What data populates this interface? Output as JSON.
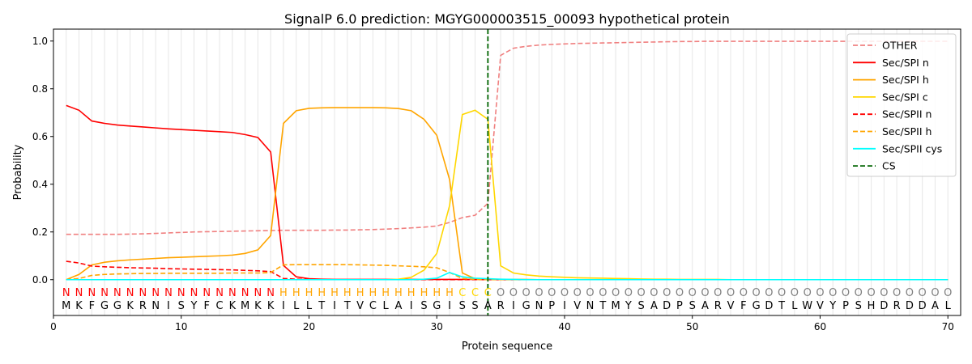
{
  "chart_data": {
    "type": "line",
    "title": "SignalP 6.0 prediction: MGYG000003515_00093 hypothetical protein",
    "xlabel": "Protein sequence",
    "ylabel": "Probability",
    "xlim": [
      0,
      71
    ],
    "ylim": [
      -0.15,
      1.05
    ],
    "x_ticks": [
      0,
      10,
      20,
      30,
      40,
      50,
      60,
      70
    ],
    "y_ticks": [
      0.0,
      0.2,
      0.4,
      0.6,
      0.8,
      1.0
    ],
    "x_tick_labels": [
      "0",
      "10",
      "20",
      "30",
      "40",
      "50",
      "60",
      "70"
    ],
    "y_tick_labels": [
      "0.0",
      "0.2",
      "0.4",
      "0.6",
      "0.8",
      "1.0"
    ],
    "grid": "vertical lines at each residue",
    "legend_position": "top-right",
    "sequence": [
      "M",
      "K",
      "F",
      "G",
      "G",
      "K",
      "R",
      "N",
      "I",
      "S",
      "Y",
      "F",
      "C",
      "K",
      "M",
      "K",
      "K",
      "I",
      "L",
      "L",
      "T",
      "I",
      "T",
      "V",
      "C",
      "L",
      "A",
      "I",
      "S",
      "G",
      "I",
      "S",
      "S",
      "A",
      "R",
      "I",
      "G",
      "N",
      "P",
      "I",
      "V",
      "N",
      "T",
      "M",
      "Y",
      "S",
      "A",
      "D",
      "P",
      "S",
      "A",
      "R",
      "V",
      "F",
      "G",
      "D",
      "T",
      "L",
      "W",
      "V",
      "Y",
      "P",
      "S",
      "H",
      "D",
      "R",
      "D",
      "D",
      "A",
      "L"
    ],
    "labels": [
      "N",
      "N",
      "N",
      "N",
      "N",
      "N",
      "N",
      "N",
      "N",
      "N",
      "N",
      "N",
      "N",
      "N",
      "N",
      "N",
      "N",
      "H",
      "H",
      "H",
      "H",
      "H",
      "H",
      "H",
      "H",
      "H",
      "H",
      "H",
      "H",
      "H",
      "H",
      "C",
      "C",
      "C",
      "O",
      "O",
      "O",
      "O",
      "O",
      "O",
      "O",
      "O",
      "O",
      "O",
      "O",
      "O",
      "O",
      "O",
      "O",
      "O",
      "O",
      "O",
      "O",
      "O",
      "O",
      "O",
      "O",
      "O",
      "O",
      "O",
      "O",
      "O",
      "O",
      "O",
      "O",
      "O",
      "O",
      "O",
      "O",
      "O"
    ],
    "label_colors": {
      "N": "#ff0000",
      "H": "#ffa500",
      "C": "#ffd700",
      "O": "#808080"
    },
    "cleavage_site": 34,
    "series": [
      {
        "name": "OTHER",
        "color": "#f08080",
        "dash": "dashed",
        "values": [
          0.19,
          0.19,
          0.19,
          0.19,
          0.19,
          0.191,
          0.192,
          0.194,
          0.196,
          0.198,
          0.2,
          0.201,
          0.202,
          0.203,
          0.204,
          0.205,
          0.206,
          0.207,
          0.207,
          0.207,
          0.207,
          0.208,
          0.208,
          0.209,
          0.21,
          0.212,
          0.214,
          0.217,
          0.22,
          0.225,
          0.24,
          0.26,
          0.27,
          0.32,
          0.94,
          0.97,
          0.978,
          0.983,
          0.986,
          0.988,
          0.99,
          0.991,
          0.992,
          0.993,
          0.994,
          0.995,
          0.996,
          0.997,
          0.998,
          0.998,
          0.999,
          0.999,
          0.999,
          0.999,
          0.999,
          0.999,
          0.999,
          0.999,
          0.999,
          0.999,
          0.999,
          0.999,
          0.999,
          0.999,
          0.999,
          0.999,
          0.999,
          0.999,
          0.999,
          0.999
        ]
      },
      {
        "name": "Sec/SPI n",
        "color": "#ff0000",
        "dash": "solid",
        "values": [
          0.73,
          0.71,
          0.665,
          0.655,
          0.648,
          0.644,
          0.64,
          0.636,
          0.632,
          0.629,
          0.626,
          0.623,
          0.62,
          0.617,
          0.608,
          0.596,
          0.535,
          0.06,
          0.012,
          0.004,
          0.002,
          0.001,
          0.001,
          0.001,
          0.001,
          0.001,
          0.001,
          0.001,
          0.001,
          0.001,
          0.001,
          0.001,
          0.001,
          0.001,
          0.0,
          0.0,
          0.0,
          0.0,
          0.0,
          0.0,
          0.0,
          0.0,
          0.0,
          0.0,
          0.0,
          0.0,
          0.0,
          0.0,
          0.0,
          0.0,
          0.0,
          0.0,
          0.0,
          0.0,
          0.0,
          0.0,
          0.0,
          0.0,
          0.0,
          0.0,
          0.0,
          0.0,
          0.0,
          0.0,
          0.0,
          0.0,
          0.0,
          0.0,
          0.0,
          0.0
        ]
      },
      {
        "name": "Sec/SPI h",
        "color": "#ffa500",
        "dash": "solid",
        "values": [
          0.0,
          0.022,
          0.062,
          0.073,
          0.079,
          0.083,
          0.086,
          0.089,
          0.092,
          0.094,
          0.096,
          0.098,
          0.1,
          0.103,
          0.11,
          0.125,
          0.185,
          0.655,
          0.708,
          0.718,
          0.72,
          0.721,
          0.721,
          0.721,
          0.721,
          0.72,
          0.717,
          0.708,
          0.672,
          0.605,
          0.42,
          0.028,
          0.004,
          0.002,
          0.001,
          0.001,
          0.001,
          0.0,
          0.0,
          0.0,
          0.0,
          0.0,
          0.0,
          0.0,
          0.0,
          0.0,
          0.0,
          0.0,
          0.0,
          0.0,
          0.0,
          0.0,
          0.0,
          0.0,
          0.0,
          0.0,
          0.0,
          0.0,
          0.0,
          0.0,
          0.0,
          0.0,
          0.0,
          0.0,
          0.0,
          0.0,
          0.0,
          0.0,
          0.0,
          0.0
        ]
      },
      {
        "name": "Sec/SPI c",
        "color": "#ffd700",
        "dash": "solid",
        "values": [
          0.0,
          0.0,
          0.0,
          0.0,
          0.0,
          0.0,
          0.0,
          0.0,
          0.0,
          0.0,
          0.0,
          0.0,
          0.0,
          0.0,
          0.0,
          0.0,
          0.0,
          0.0,
          0.0,
          0.0,
          0.0,
          0.0,
          0.0,
          0.0,
          0.0,
          0.0,
          0.002,
          0.01,
          0.04,
          0.11,
          0.31,
          0.692,
          0.71,
          0.672,
          0.058,
          0.028,
          0.02,
          0.015,
          0.012,
          0.01,
          0.008,
          0.007,
          0.006,
          0.005,
          0.004,
          0.003,
          0.002,
          0.002,
          0.001,
          0.001,
          0.001,
          0.001,
          0.0,
          0.0,
          0.0,
          0.0,
          0.0,
          0.0,
          0.0,
          0.0,
          0.0,
          0.0,
          0.0,
          0.0,
          0.0,
          0.0,
          0.0,
          0.0,
          0.0,
          0.0
        ]
      },
      {
        "name": "Sec/SPII n",
        "color": "#ff0000",
        "dash": "dashed",
        "values": [
          0.077,
          0.07,
          0.057,
          0.054,
          0.052,
          0.05,
          0.049,
          0.048,
          0.046,
          0.045,
          0.044,
          0.043,
          0.042,
          0.041,
          0.039,
          0.037,
          0.034,
          0.005,
          0.002,
          0.001,
          0.001,
          0.0,
          0.0,
          0.0,
          0.0,
          0.0,
          0.0,
          0.0,
          0.0,
          0.0,
          0.0,
          0.0,
          0.0,
          0.0,
          0.0,
          0.0,
          0.0,
          0.0,
          0.0,
          0.0,
          0.0,
          0.0,
          0.0,
          0.0,
          0.0,
          0.0,
          0.0,
          0.0,
          0.0,
          0.0,
          0.0,
          0.0,
          0.0,
          0.0,
          0.0,
          0.0,
          0.0,
          0.0,
          0.0,
          0.0,
          0.0,
          0.0,
          0.0,
          0.0,
          0.0,
          0.0,
          0.0,
          0.0,
          0.0,
          0.0
        ]
      },
      {
        "name": "Sec/SPII h",
        "color": "#ffa500",
        "dash": "dashed",
        "values": [
          0.0,
          0.005,
          0.018,
          0.022,
          0.024,
          0.025,
          0.026,
          0.026,
          0.027,
          0.027,
          0.027,
          0.027,
          0.027,
          0.028,
          0.028,
          0.028,
          0.03,
          0.062,
          0.063,
          0.063,
          0.063,
          0.063,
          0.063,
          0.062,
          0.061,
          0.06,
          0.058,
          0.056,
          0.054,
          0.05,
          0.03,
          0.005,
          0.001,
          0.0,
          0.0,
          0.0,
          0.0,
          0.0,
          0.0,
          0.0,
          0.0,
          0.0,
          0.0,
          0.0,
          0.0,
          0.0,
          0.0,
          0.0,
          0.0,
          0.0,
          0.0,
          0.0,
          0.0,
          0.0,
          0.0,
          0.0,
          0.0,
          0.0,
          0.0,
          0.0,
          0.0,
          0.0,
          0.0,
          0.0,
          0.0,
          0.0,
          0.0,
          0.0,
          0.0,
          0.0
        ]
      },
      {
        "name": "Sec/SPII cys",
        "color": "#00ffff",
        "dash": "solid",
        "values": [
          0.0,
          0.0,
          0.0,
          0.0,
          0.0,
          0.0,
          0.0,
          0.0,
          0.0,
          0.0,
          0.0,
          0.0,
          0.0,
          0.0,
          0.0,
          0.0,
          0.0,
          0.0,
          0.0,
          0.0,
          0.0,
          0.0,
          0.0,
          0.0,
          0.0,
          0.0,
          0.0,
          0.0,
          0.002,
          0.006,
          0.03,
          0.012,
          0.006,
          0.004,
          0.002,
          0.001,
          0.0,
          0.0,
          0.0,
          0.0,
          0.0,
          0.0,
          0.0,
          0.0,
          0.0,
          0.0,
          0.0,
          0.0,
          0.0,
          0.0,
          0.0,
          0.0,
          0.0,
          0.0,
          0.0,
          0.0,
          0.0,
          0.0,
          0.0,
          0.0,
          0.0,
          0.0,
          0.0,
          0.0,
          0.0,
          0.0,
          0.0,
          0.0,
          0.0,
          0.0
        ]
      }
    ],
    "legend": [
      {
        "name": "OTHER",
        "color": "#f08080",
        "dash": "dashed"
      },
      {
        "name": "Sec/SPI n",
        "color": "#ff0000",
        "dash": "solid"
      },
      {
        "name": "Sec/SPI h",
        "color": "#ffa500",
        "dash": "solid"
      },
      {
        "name": "Sec/SPI c",
        "color": "#ffd700",
        "dash": "solid"
      },
      {
        "name": "Sec/SPII n",
        "color": "#ff0000",
        "dash": "dashed"
      },
      {
        "name": "Sec/SPII h",
        "color": "#ffa500",
        "dash": "dashed"
      },
      {
        "name": "Sec/SPII cys",
        "color": "#00ffff",
        "dash": "solid"
      },
      {
        "name": "CS",
        "color": "#006400",
        "dash": "dashed"
      }
    ]
  }
}
